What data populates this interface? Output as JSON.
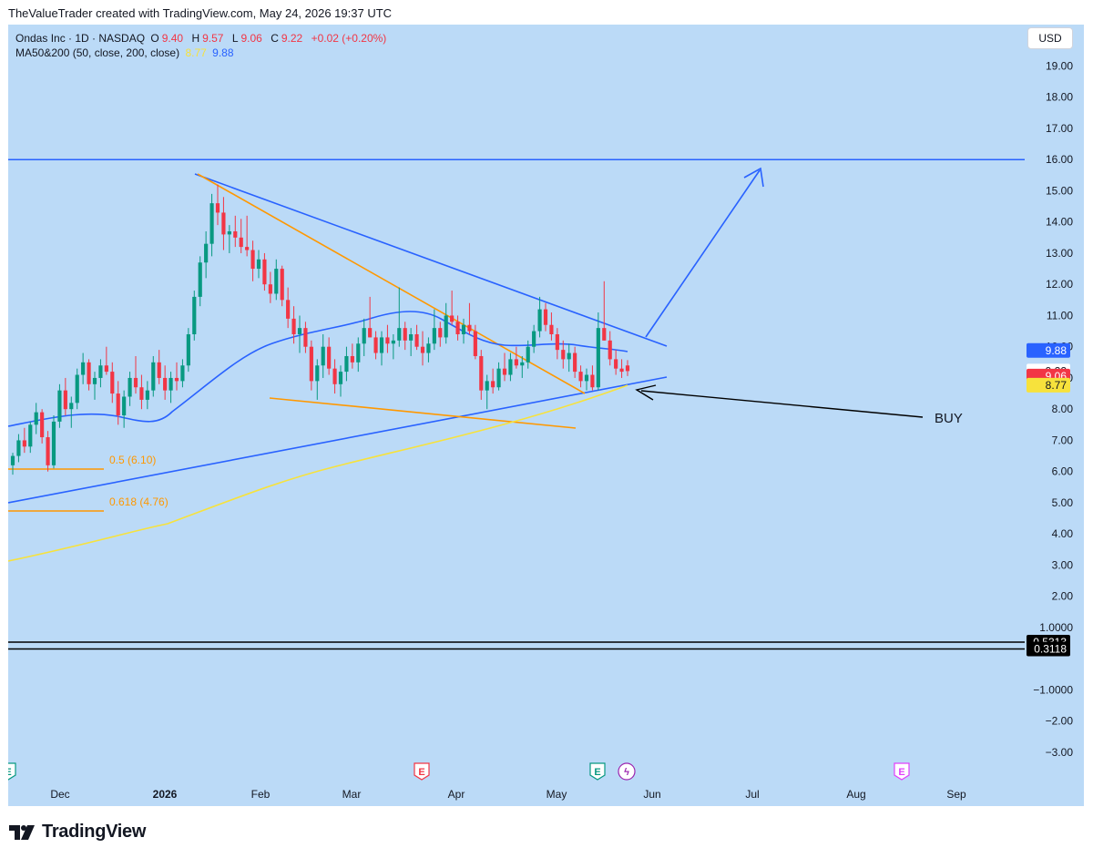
{
  "caption": "TheValueTrader created with TradingView.com, May 24, 2026 19:37 UTC",
  "symbol_line": {
    "title": "Ondas Inc · 1D · NASDAQ",
    "o_label": "O",
    "o_value": "9.40",
    "h_label": "H",
    "h_value": "9.57",
    "l_label": "L",
    "l_value": "9.06",
    "c_label": "C",
    "c_value": "9.22",
    "change": "+0.02 (+0.20%)"
  },
  "ma_line": {
    "label": "MA50&200 (50, close, 200, close)",
    "ma200_value": "8.77",
    "ma50_value": "9.88"
  },
  "currency": "USD",
  "annotations": {
    "buy": "BUY",
    "fib_05": "0.5 (6.10)",
    "fib_0618": "0.618 (4.76)"
  },
  "footer": {
    "brand": "TradingView"
  },
  "colors": {
    "background": "#bbdaf7",
    "up": "#089981",
    "down": "#f23645",
    "trend_blue": "#2962ff",
    "trend_orange": "#ff9800",
    "ma200": "#f7e23c",
    "ma50": "#2962ff"
  },
  "chart_data": {
    "type": "candlestick",
    "title": "Ondas Inc · 1D · NASDAQ",
    "y_axis": {
      "labels": [
        "19.00",
        "18.00",
        "17.00",
        "16.00",
        "15.00",
        "14.00",
        "13.00",
        "12.00",
        "11.00",
        "10.00",
        "9.00",
        "8.00",
        "7.00",
        "6.00",
        "5.00",
        "4.00",
        "3.00",
        "2.00",
        "1.0000",
        "−1.0000",
        "−2.00",
        "−3.00"
      ],
      "values": [
        19,
        18,
        17,
        16,
        15,
        14,
        13,
        12,
        11,
        10,
        9,
        8,
        7,
        6,
        5,
        4,
        3,
        2,
        1,
        -1,
        -2,
        -3
      ],
      "range": [
        -3.6,
        20.1
      ]
    },
    "x_axis": {
      "labels": [
        "Dec",
        "2026",
        "Feb",
        "Mar",
        "Apr",
        "May",
        "Jun",
        "Jul",
        "Aug",
        "Sep"
      ]
    },
    "price_tags": [
      {
        "value": 9.88,
        "text": "9.88",
        "bg": "#2962ff",
        "fg": "#ffffff"
      },
      {
        "value": 9.22,
        "text": "9.22",
        "bg": "#ffffff",
        "fg": "#131722"
      },
      {
        "value": 9.06,
        "text": "9.06",
        "bg": "#f23645",
        "fg": "#ffffff"
      },
      {
        "value": 8.77,
        "text": "8.77",
        "bg": "#f7e23c",
        "fg": "#131722"
      },
      {
        "value": 0.5313,
        "text": "0.5313",
        "bg": "#000000",
        "fg": "#ffffff"
      },
      {
        "value": 0.3118,
        "text": "0.3118",
        "bg": "#000000",
        "fg": "#ffffff"
      }
    ],
    "horizontal_lines": [
      {
        "value": 16.0,
        "color": "#2962ff"
      },
      {
        "value": 0.5313,
        "color": "#000000"
      },
      {
        "value": 0.3118,
        "color": "#000000"
      }
    ],
    "events": [
      {
        "label": "E",
        "color": "#089981",
        "month": "Nov"
      },
      {
        "label": "E",
        "color": "#f23645",
        "month": "Mar"
      },
      {
        "label": "E",
        "color": "#089981",
        "month": "May"
      },
      {
        "label": "ϟ",
        "color": "#9c27b0",
        "month": "May"
      },
      {
        "label": "E",
        "color": "#e040fb",
        "month": "Aug"
      }
    ],
    "candles_ohlc": [
      [
        6.2,
        6.6,
        5.9,
        6.5
      ],
      [
        6.5,
        7.2,
        6.3,
        7.0
      ],
      [
        7.0,
        7.4,
        6.6,
        6.8
      ],
      [
        6.8,
        7.6,
        6.6,
        7.5
      ],
      [
        7.5,
        8.2,
        7.2,
        7.9
      ],
      [
        7.9,
        8.0,
        6.9,
        7.1
      ],
      [
        7.1,
        7.3,
        6.0,
        6.2
      ],
      [
        6.2,
        7.8,
        6.1,
        7.6
      ],
      [
        7.6,
        8.8,
        7.4,
        8.6
      ],
      [
        8.6,
        9.0,
        7.8,
        8.0
      ],
      [
        8.0,
        8.4,
        7.4,
        8.2
      ],
      [
        8.2,
        9.3,
        8.0,
        9.1
      ],
      [
        9.1,
        9.8,
        8.8,
        9.5
      ],
      [
        9.5,
        9.6,
        8.6,
        8.8
      ],
      [
        8.8,
        9.2,
        8.3,
        9.0
      ],
      [
        9.0,
        9.6,
        8.7,
        9.4
      ],
      [
        9.4,
        10.0,
        9.1,
        9.2
      ],
      [
        9.2,
        9.5,
        8.2,
        8.5
      ],
      [
        8.5,
        8.9,
        7.5,
        7.8
      ],
      [
        7.8,
        8.6,
        7.4,
        8.4
      ],
      [
        8.4,
        9.2,
        8.1,
        9.0
      ],
      [
        9.0,
        9.7,
        8.5,
        8.7
      ],
      [
        8.7,
        9.1,
        8.0,
        8.3
      ],
      [
        8.3,
        8.9,
        8.0,
        8.6
      ],
      [
        8.6,
        9.7,
        8.4,
        9.5
      ],
      [
        9.5,
        9.9,
        8.8,
        9.0
      ],
      [
        9.0,
        9.4,
        8.3,
        8.6
      ],
      [
        8.6,
        9.2,
        8.2,
        9.0
      ],
      [
        9.0,
        9.5,
        8.6,
        8.9
      ],
      [
        8.9,
        9.6,
        8.7,
        9.4
      ],
      [
        9.4,
        10.6,
        9.2,
        10.4
      ],
      [
        10.4,
        11.8,
        10.2,
        11.6
      ],
      [
        11.6,
        12.9,
        11.3,
        12.7
      ],
      [
        12.7,
        13.7,
        12.2,
        13.3
      ],
      [
        13.3,
        14.9,
        12.9,
        14.6
      ],
      [
        14.6,
        15.2,
        13.9,
        14.3
      ],
      [
        14.3,
        14.8,
        13.1,
        13.6
      ],
      [
        13.6,
        13.9,
        13.0,
        13.7
      ],
      [
        13.7,
        14.2,
        13.2,
        13.5
      ],
      [
        13.5,
        14.1,
        13.0,
        13.2
      ],
      [
        13.2,
        14.2,
        12.9,
        13.1
      ],
      [
        13.1,
        13.4,
        12.1,
        12.5
      ],
      [
        12.5,
        13.1,
        12.2,
        12.8
      ],
      [
        12.8,
        13.0,
        11.8,
        12.0
      ],
      [
        12.0,
        12.4,
        11.4,
        11.7
      ],
      [
        11.7,
        12.8,
        11.5,
        12.5
      ],
      [
        12.5,
        12.6,
        11.3,
        11.5
      ],
      [
        11.5,
        11.9,
        10.6,
        10.9
      ],
      [
        10.9,
        11.3,
        10.1,
        10.4
      ],
      [
        10.4,
        11.0,
        9.8,
        10.6
      ],
      [
        10.6,
        10.8,
        9.8,
        10.0
      ],
      [
        10.0,
        10.2,
        8.6,
        8.9
      ],
      [
        8.9,
        9.6,
        8.3,
        9.4
      ],
      [
        9.4,
        10.4,
        9.0,
        10.0
      ],
      [
        10.0,
        10.3,
        9.1,
        9.3
      ],
      [
        9.3,
        9.6,
        8.5,
        8.8
      ],
      [
        8.8,
        9.4,
        8.4,
        9.2
      ],
      [
        9.2,
        10.0,
        8.9,
        9.7
      ],
      [
        9.7,
        10.1,
        9.3,
        9.5
      ],
      [
        9.5,
        10.3,
        9.2,
        10.1
      ],
      [
        10.1,
        10.9,
        9.7,
        10.6
      ],
      [
        10.6,
        11.6,
        10.3,
        10.3
      ],
      [
        10.3,
        10.5,
        9.6,
        9.8
      ],
      [
        9.8,
        10.5,
        9.4,
        10.3
      ],
      [
        10.3,
        10.7,
        9.8,
        10.1
      ],
      [
        10.1,
        10.4,
        9.6,
        10.2
      ],
      [
        10.2,
        11.9,
        10.0,
        10.6
      ],
      [
        10.6,
        10.8,
        9.9,
        10.2
      ],
      [
        10.2,
        10.6,
        9.7,
        10.4
      ],
      [
        10.4,
        10.7,
        9.9,
        10.0
      ],
      [
        10.0,
        10.5,
        9.4,
        9.8
      ],
      [
        9.8,
        10.3,
        9.5,
        10.1
      ],
      [
        10.1,
        11.2,
        9.9,
        10.6
      ],
      [
        10.6,
        10.8,
        10.0,
        10.3
      ],
      [
        10.3,
        11.4,
        10.1,
        11.0
      ],
      [
        11.0,
        11.8,
        10.7,
        10.8
      ],
      [
        10.8,
        11.0,
        10.2,
        10.4
      ],
      [
        10.4,
        10.9,
        10.1,
        10.7
      ],
      [
        10.7,
        11.4,
        10.4,
        10.5
      ],
      [
        10.5,
        10.7,
        9.6,
        9.7
      ],
      [
        9.7,
        9.9,
        8.3,
        8.6
      ],
      [
        8.6,
        9.1,
        8.0,
        8.9
      ],
      [
        8.9,
        9.3,
        8.5,
        8.7
      ],
      [
        8.7,
        9.5,
        8.6,
        9.3
      ],
      [
        9.3,
        9.8,
        8.9,
        9.1
      ],
      [
        9.1,
        9.8,
        8.9,
        9.6
      ],
      [
        9.6,
        10.0,
        9.3,
        9.4
      ],
      [
        9.4,
        9.7,
        9.0,
        9.5
      ],
      [
        9.5,
        10.2,
        9.3,
        10.0
      ],
      [
        10.0,
        10.7,
        9.8,
        10.5
      ],
      [
        10.5,
        11.6,
        10.3,
        11.2
      ],
      [
        11.2,
        11.4,
        10.5,
        10.7
      ],
      [
        10.7,
        11.1,
        10.2,
        10.4
      ],
      [
        10.4,
        10.6,
        9.6,
        9.9
      ],
      [
        9.9,
        10.2,
        9.3,
        9.6
      ],
      [
        9.6,
        10.1,
        9.2,
        9.8
      ],
      [
        9.8,
        10.0,
        9.0,
        9.2
      ],
      [
        9.2,
        9.4,
        8.7,
        8.9
      ],
      [
        8.9,
        9.3,
        8.6,
        9.1
      ],
      [
        9.1,
        9.4,
        8.6,
        8.7
      ],
      [
        8.7,
        11.1,
        8.6,
        10.6
      ],
      [
        10.6,
        12.1,
        10.2,
        10.2
      ],
      [
        10.2,
        10.5,
        9.4,
        9.6
      ],
      [
        9.6,
        9.9,
        9.1,
        9.3
      ],
      [
        9.3,
        9.6,
        9.0,
        9.2
      ],
      [
        9.4,
        9.57,
        9.06,
        9.22
      ]
    ]
  }
}
